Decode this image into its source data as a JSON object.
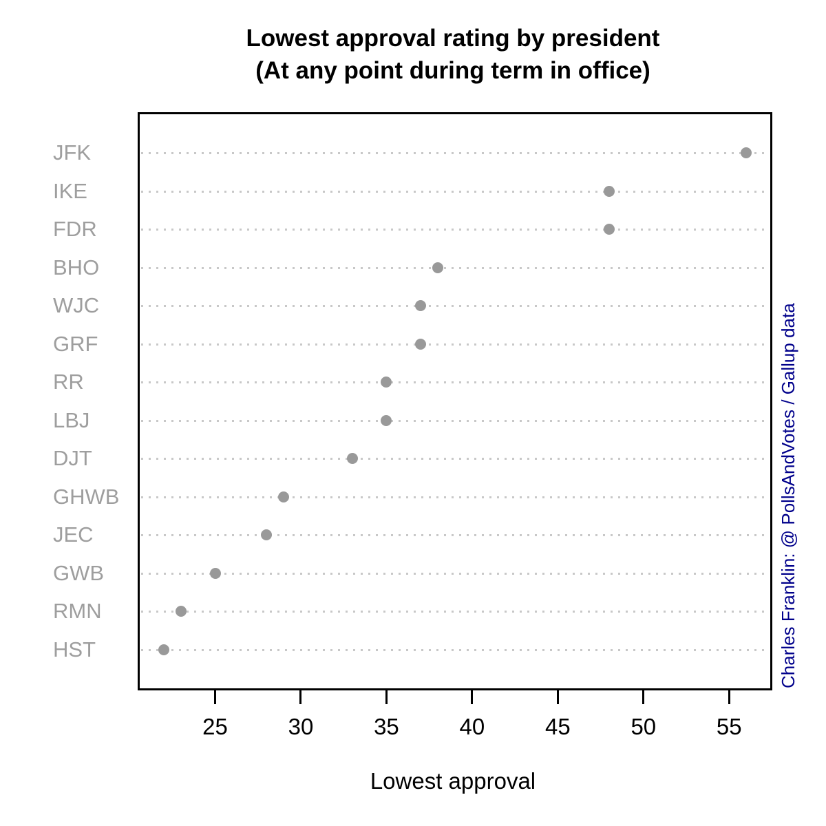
{
  "header": {
    "title": "Lowest approval rating by president",
    "subtitle": "(At any point during term in office)"
  },
  "credit": {
    "text": "Charles Franklin: @ PollsAndVotes / Gallup data"
  },
  "colors": {
    "point": "#999999",
    "category_label": "#9e9e9e",
    "gridline": "#c8c8c8",
    "axis_text": "#000000",
    "box_border": "#000000",
    "credit": "#00008B",
    "background": "#ffffff"
  },
  "chart_data": {
    "type": "scatter",
    "variant": "dot-plot",
    "title": "Lowest approval rating by president",
    "subtitle": "(At any point during term in office)",
    "xlabel": "Lowest approval",
    "ylabel": "",
    "categories": [
      "JFK",
      "IKE",
      "FDR",
      "BHO",
      "WJC",
      "GRF",
      "RR",
      "LBJ",
      "DJT",
      "GHWB",
      "JEC",
      "GWB",
      "RMN",
      "HST"
    ],
    "values": [
      56,
      48,
      48,
      38,
      37,
      37,
      35,
      35,
      33,
      29,
      28,
      25,
      23,
      22
    ],
    "xlim": [
      20.6,
      57.4
    ],
    "xticks": [
      25,
      30,
      35,
      40,
      45,
      50,
      55
    ],
    "grid": "horizontal-dotted",
    "legend": "none"
  }
}
